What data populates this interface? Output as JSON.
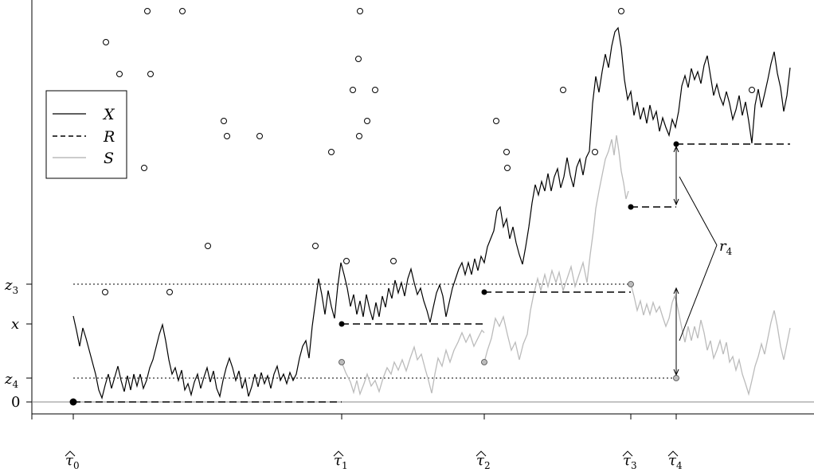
{
  "figure": {
    "legend": [
      {
        "label": "X",
        "style": "solid-black"
      },
      {
        "label": "R",
        "style": "dashed-black"
      },
      {
        "label": "S",
        "style": "solid-gray"
      }
    ],
    "y_level_labels": [
      {
        "label": "z",
        "sub": "3",
        "level": "z3"
      },
      {
        "label": "x",
        "sub": "",
        "level": "x"
      },
      {
        "label": "z",
        "sub": "4",
        "level": "z4"
      },
      {
        "label": "0",
        "sub": "",
        "level": "zero"
      }
    ],
    "x_tick_labels": [
      {
        "label": "τ",
        "sub": "0",
        "at": "tau0"
      },
      {
        "label": "τ",
        "sub": "1",
        "at": "tau1"
      },
      {
        "label": "τ",
        "sub": "2",
        "at": "tau2"
      },
      {
        "label": "τ",
        "sub": "3",
        "at": "tau3"
      },
      {
        "label": "τ",
        "sub": "4",
        "at": "tau4"
      }
    ],
    "annotation": {
      "label": "r",
      "sub": "4"
    },
    "colors": {
      "X": "#000000",
      "R": "#000000",
      "S": "#bbbbbb",
      "open_point": "#000000"
    }
  }
}
